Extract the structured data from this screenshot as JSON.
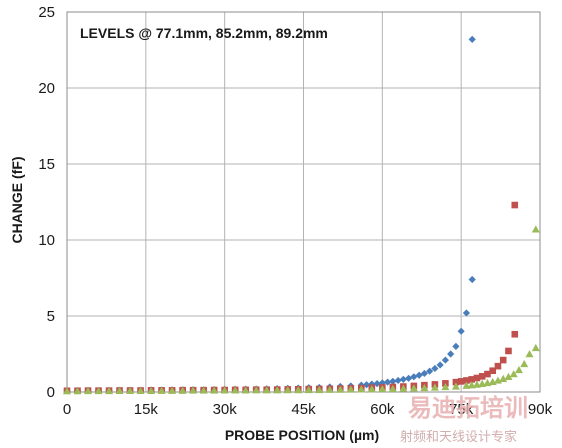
{
  "chart_data": {
    "type": "scatter",
    "title": "",
    "annotation": "LEVELS @ 77.1mm, 85.2mm, 89.2mm",
    "xlabel": "PROBE POSITION (µm)",
    "ylabel": "CHANGE (fF)",
    "xlim": [
      0,
      90000
    ],
    "ylim": [
      0,
      25
    ],
    "x_ticks": [
      {
        "value": 0,
        "label": "0"
      },
      {
        "value": 15000,
        "label": "15k"
      },
      {
        "value": 30000,
        "label": "30k"
      },
      {
        "value": 45000,
        "label": "45k"
      },
      {
        "value": 60000,
        "label": "60k"
      },
      {
        "value": 75000,
        "label": "75k"
      },
      {
        "value": 90000,
        "label": "90k"
      }
    ],
    "y_ticks": [
      {
        "value": 0,
        "label": "0"
      },
      {
        "value": 5,
        "label": "5"
      },
      {
        "value": 10,
        "label": "10"
      },
      {
        "value": 15,
        "label": "15"
      },
      {
        "value": 20,
        "label": "20"
      },
      {
        "value": 25,
        "label": "25"
      }
    ],
    "grid": true,
    "legend": "none",
    "series": [
      {
        "marker": "diamond",
        "color": "#4a7ebb",
        "x": [
          0,
          2000,
          4000,
          6000,
          8000,
          10000,
          12000,
          14000,
          16000,
          18000,
          20000,
          22000,
          24000,
          26000,
          28000,
          30000,
          32000,
          34000,
          36000,
          38000,
          40000,
          42000,
          44000,
          46000,
          48000,
          50000,
          52000,
          54000,
          56000,
          57000,
          58000,
          59000,
          60000,
          61000,
          62000,
          63000,
          64000,
          65000,
          66000,
          67000,
          68000,
          69000,
          70000,
          71000,
          72000,
          73000,
          74000,
          75000,
          76000,
          77100
        ],
        "y": [
          0.1,
          0.1,
          0.11,
          0.11,
          0.11,
          0.12,
          0.12,
          0.12,
          0.13,
          0.13,
          0.14,
          0.14,
          0.15,
          0.15,
          0.16,
          0.17,
          0.18,
          0.19,
          0.2,
          0.21,
          0.22,
          0.24,
          0.26,
          0.28,
          0.3,
          0.33,
          0.36,
          0.4,
          0.45,
          0.48,
          0.52,
          0.55,
          0.6,
          0.65,
          0.7,
          0.76,
          0.83,
          0.9,
          1.0,
          1.1,
          1.22,
          1.37,
          1.55,
          1.78,
          2.1,
          2.5,
          3.0,
          4.0,
          5.2,
          7.4
        ]
      },
      {
        "marker": "square",
        "color": "#c0504d",
        "x": [
          0,
          2000,
          4000,
          6000,
          8000,
          10000,
          12000,
          14000,
          16000,
          18000,
          20000,
          22000,
          24000,
          26000,
          28000,
          30000,
          32000,
          34000,
          36000,
          38000,
          40000,
          42000,
          44000,
          46000,
          48000,
          50000,
          52000,
          54000,
          56000,
          58000,
          60000,
          62000,
          64000,
          66000,
          68000,
          70000,
          72000,
          74000,
          75000,
          76000,
          77000,
          78000,
          79000,
          80000,
          81000,
          82000,
          83000,
          84000,
          85200
        ],
        "y": [
          0.08,
          0.08,
          0.09,
          0.09,
          0.09,
          0.1,
          0.1,
          0.1,
          0.11,
          0.11,
          0.11,
          0.12,
          0.12,
          0.12,
          0.13,
          0.13,
          0.14,
          0.14,
          0.15,
          0.15,
          0.16,
          0.17,
          0.18,
          0.19,
          0.2,
          0.21,
          0.22,
          0.24,
          0.26,
          0.28,
          0.3,
          0.33,
          0.36,
          0.4,
          0.45,
          0.5,
          0.57,
          0.65,
          0.7,
          0.76,
          0.83,
          0.92,
          1.03,
          1.18,
          1.4,
          1.7,
          2.1,
          2.7,
          3.8
        ]
      },
      {
        "marker": "triangle",
        "color": "#9bbb59",
        "x": [
          0,
          2000,
          4000,
          6000,
          8000,
          10000,
          12000,
          14000,
          16000,
          18000,
          20000,
          22000,
          24000,
          26000,
          28000,
          30000,
          32000,
          34000,
          36000,
          38000,
          40000,
          42000,
          44000,
          46000,
          48000,
          50000,
          52000,
          54000,
          56000,
          58000,
          60000,
          62000,
          64000,
          66000,
          68000,
          70000,
          72000,
          74000,
          76000,
          77000,
          78000,
          79000,
          80000,
          81000,
          82000,
          83000,
          84000,
          85000,
          86000,
          87000,
          88000,
          89200
        ],
        "y": [
          0.06,
          0.06,
          0.07,
          0.07,
          0.07,
          0.08,
          0.08,
          0.08,
          0.08,
          0.09,
          0.09,
          0.09,
          0.1,
          0.1,
          0.1,
          0.11,
          0.11,
          0.11,
          0.12,
          0.12,
          0.12,
          0.13,
          0.13,
          0.14,
          0.14,
          0.15,
          0.16,
          0.17,
          0.18,
          0.19,
          0.2,
          0.21,
          0.23,
          0.25,
          0.27,
          0.3,
          0.33,
          0.37,
          0.42,
          0.45,
          0.49,
          0.54,
          0.6,
          0.67,
          0.76,
          0.87,
          1.0,
          1.18,
          1.45,
          1.85,
          2.5,
          2.9
        ]
      }
    ],
    "outliers_above_view": [
      {
        "series": 0,
        "x": 77100,
        "y": 23.2
      },
      {
        "series": 1,
        "x": 85200,
        "y": 12.3
      },
      {
        "series": 2,
        "x": 89200,
        "y": 10.7
      }
    ]
  },
  "watermark": {
    "main": "易迪拓培训",
    "sub": "射频和天线设计专家"
  }
}
